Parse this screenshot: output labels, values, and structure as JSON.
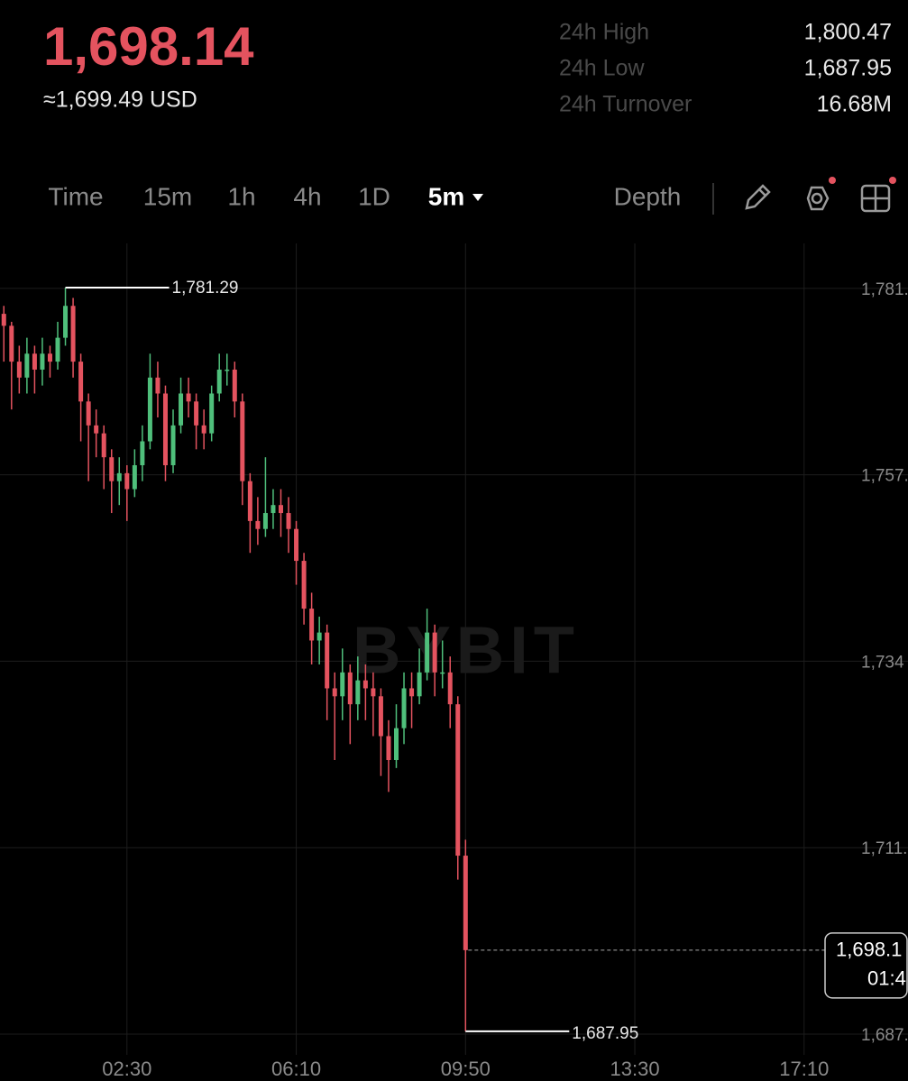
{
  "header": {
    "price": "1,698.14",
    "usd": "≈1,699.49 USD",
    "stats": [
      {
        "label": "24h High",
        "value": "1,800.47"
      },
      {
        "label": "24h Low",
        "value": "1,687.95"
      },
      {
        "label": "24h Turnover",
        "value": "16.68M"
      }
    ]
  },
  "toolbar": {
    "tabs": [
      "Time",
      "15m",
      "1h",
      "4h",
      "1D",
      "5m"
    ],
    "depth": "Depth"
  },
  "chart_data": {
    "type": "candlestick",
    "watermark": "BYBIT",
    "up_color": "#4fbf7b",
    "down_color": "#e4535f",
    "grid": true,
    "ylim": [
      1685.0,
      1789.1
    ],
    "yticks": [
      {
        "value": 1781.2,
        "label": "1,781."
      },
      {
        "value": 1757.8,
        "label": "1,757."
      },
      {
        "value": 1734.4,
        "label": "1,734"
      },
      {
        "value": 1711.0,
        "label": "1,711."
      },
      {
        "value": 1687.6,
        "label": "1,687."
      }
    ],
    "xlim": [
      "23:45",
      "19:25"
    ],
    "xticks": [
      "02:30",
      "06:10",
      "09:50",
      "13:30",
      "17:10"
    ],
    "candles": [
      {
        "t": "23:50",
        "o": 1778,
        "h": 1779,
        "l": 1772,
        "c": 1776.5
      },
      {
        "t": "00:00",
        "o": 1776.5,
        "h": 1777,
        "l": 1766,
        "c": 1772
      },
      {
        "t": "00:10",
        "o": 1772,
        "h": 1774,
        "l": 1768,
        "c": 1770
      },
      {
        "t": "00:20",
        "o": 1770,
        "h": 1775,
        "l": 1768,
        "c": 1773
      },
      {
        "t": "00:30",
        "o": 1773,
        "h": 1774,
        "l": 1768,
        "c": 1771
      },
      {
        "t": "00:40",
        "o": 1771,
        "h": 1775,
        "l": 1769,
        "c": 1773
      },
      {
        "t": "00:50",
        "o": 1773,
        "h": 1774,
        "l": 1770,
        "c": 1772
      },
      {
        "t": "01:00",
        "o": 1772,
        "h": 1777,
        "l": 1771,
        "c": 1775
      },
      {
        "t": "01:10",
        "o": 1775,
        "h": 1781.29,
        "l": 1774,
        "c": 1779
      },
      {
        "t": "01:20",
        "o": 1779,
        "h": 1780,
        "l": 1770,
        "c": 1772
      },
      {
        "t": "01:30",
        "o": 1772,
        "h": 1773,
        "l": 1762,
        "c": 1767
      },
      {
        "t": "01:40",
        "o": 1767,
        "h": 1768,
        "l": 1757,
        "c": 1764
      },
      {
        "t": "01:50",
        "o": 1764,
        "h": 1766,
        "l": 1760,
        "c": 1763
      },
      {
        "t": "02:00",
        "o": 1763,
        "h": 1764,
        "l": 1756,
        "c": 1760
      },
      {
        "t": "02:10",
        "o": 1760,
        "h": 1761,
        "l": 1753,
        "c": 1757
      },
      {
        "t": "02:20",
        "o": 1757,
        "h": 1760,
        "l": 1754,
        "c": 1758
      },
      {
        "t": "02:30",
        "o": 1758,
        "h": 1759,
        "l": 1752,
        "c": 1756
      },
      {
        "t": "02:40",
        "o": 1756,
        "h": 1761,
        "l": 1755,
        "c": 1759
      },
      {
        "t": "02:50",
        "o": 1759,
        "h": 1764,
        "l": 1757,
        "c": 1762
      },
      {
        "t": "03:00",
        "o": 1762,
        "h": 1773,
        "l": 1761,
        "c": 1770
      },
      {
        "t": "03:10",
        "o": 1770,
        "h": 1772,
        "l": 1765,
        "c": 1768
      },
      {
        "t": "03:20",
        "o": 1768,
        "h": 1769,
        "l": 1757,
        "c": 1759
      },
      {
        "t": "03:30",
        "o": 1759,
        "h": 1766,
        "l": 1758,
        "c": 1764
      },
      {
        "t": "03:40",
        "o": 1764,
        "h": 1770,
        "l": 1763,
        "c": 1768
      },
      {
        "t": "03:50",
        "o": 1768,
        "h": 1770,
        "l": 1765,
        "c": 1767
      },
      {
        "t": "04:00",
        "o": 1767,
        "h": 1768,
        "l": 1761,
        "c": 1764
      },
      {
        "t": "04:10",
        "o": 1764,
        "h": 1766,
        "l": 1761,
        "c": 1763
      },
      {
        "t": "04:20",
        "o": 1763,
        "h": 1769,
        "l": 1762,
        "c": 1768
      },
      {
        "t": "04:30",
        "o": 1768,
        "h": 1773,
        "l": 1767,
        "c": 1771
      },
      {
        "t": "04:40",
        "o": 1771,
        "h": 1773,
        "l": 1769,
        "c": 1771
      },
      {
        "t": "04:50",
        "o": 1771,
        "h": 1772,
        "l": 1765,
        "c": 1767
      },
      {
        "t": "05:00",
        "o": 1767,
        "h": 1768,
        "l": 1754,
        "c": 1757
      },
      {
        "t": "05:10",
        "o": 1757,
        "h": 1758,
        "l": 1748,
        "c": 1752
      },
      {
        "t": "05:20",
        "o": 1752,
        "h": 1755,
        "l": 1749,
        "c": 1751
      },
      {
        "t": "05:30",
        "o": 1751,
        "h": 1760,
        "l": 1750,
        "c": 1753
      },
      {
        "t": "05:40",
        "o": 1753,
        "h": 1756,
        "l": 1751,
        "c": 1754
      },
      {
        "t": "05:50",
        "o": 1754,
        "h": 1756,
        "l": 1750,
        "c": 1753
      },
      {
        "t": "06:00",
        "o": 1753,
        "h": 1755,
        "l": 1748,
        "c": 1751
      },
      {
        "t": "06:10",
        "o": 1751,
        "h": 1752,
        "l": 1744,
        "c": 1747
      },
      {
        "t": "06:20",
        "o": 1747,
        "h": 1748,
        "l": 1739,
        "c": 1741
      },
      {
        "t": "06:30",
        "o": 1741,
        "h": 1743,
        "l": 1734,
        "c": 1737
      },
      {
        "t": "06:40",
        "o": 1737,
        "h": 1740,
        "l": 1734,
        "c": 1738
      },
      {
        "t": "06:50",
        "o": 1738,
        "h": 1739,
        "l": 1727,
        "c": 1731
      },
      {
        "t": "07:00",
        "o": 1731,
        "h": 1733,
        "l": 1722,
        "c": 1730
      },
      {
        "t": "07:10",
        "o": 1730,
        "h": 1736,
        "l": 1727,
        "c": 1733
      },
      {
        "t": "07:20",
        "o": 1733,
        "h": 1734,
        "l": 1724,
        "c": 1729
      },
      {
        "t": "07:30",
        "o": 1729,
        "h": 1735,
        "l": 1727,
        "c": 1732
      },
      {
        "t": "07:40",
        "o": 1732,
        "h": 1734,
        "l": 1727,
        "c": 1731
      },
      {
        "t": "07:50",
        "o": 1731,
        "h": 1733,
        "l": 1725,
        "c": 1730
      },
      {
        "t": "08:00",
        "o": 1730,
        "h": 1731,
        "l": 1720,
        "c": 1725
      },
      {
        "t": "08:10",
        "o": 1725,
        "h": 1727,
        "l": 1718,
        "c": 1722
      },
      {
        "t": "08:20",
        "o": 1722,
        "h": 1729,
        "l": 1721,
        "c": 1726
      },
      {
        "t": "08:30",
        "o": 1726,
        "h": 1733,
        "l": 1724,
        "c": 1731
      },
      {
        "t": "08:40",
        "o": 1731,
        "h": 1733,
        "l": 1726,
        "c": 1730
      },
      {
        "t": "08:50",
        "o": 1730,
        "h": 1736,
        "l": 1729,
        "c": 1733
      },
      {
        "t": "09:00",
        "o": 1733,
        "h": 1741,
        "l": 1732,
        "c": 1738
      },
      {
        "t": "09:10",
        "o": 1738,
        "h": 1739,
        "l": 1730,
        "c": 1733
      },
      {
        "t": "09:20",
        "o": 1733,
        "h": 1737,
        "l": 1731,
        "c": 1733
      },
      {
        "t": "09:30",
        "o": 1733,
        "h": 1735,
        "l": 1726,
        "c": 1729
      },
      {
        "t": "09:40",
        "o": 1729,
        "h": 1730,
        "l": 1707,
        "c": 1710
      },
      {
        "t": "09:50",
        "o": 1710,
        "h": 1712,
        "l": 1687.95,
        "c": 1698.14
      }
    ],
    "high_marker": {
      "value": 1781.29,
      "label": "1,781.29"
    },
    "low_marker": {
      "value": 1687.95,
      "label": "1,687.95"
    },
    "last_price": {
      "value": 1698.14,
      "label": "1,698.1"
    },
    "countdown": "01:4"
  }
}
